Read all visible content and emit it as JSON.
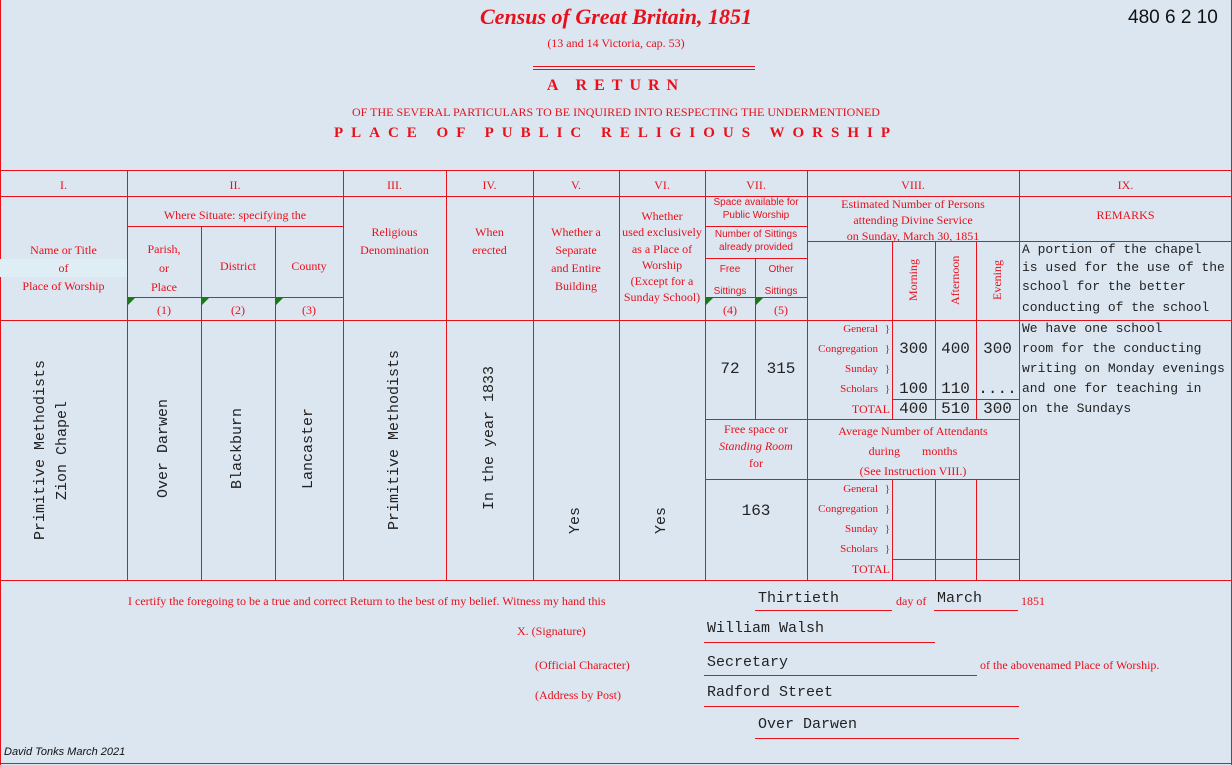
{
  "header": {
    "title": "Census of Great Britain, 1851",
    "reference": "480 6 2 10",
    "subtitle": "(13 and 14 Victoria, cap. 53)",
    "return_title": "A RETURN",
    "particulars": "OF THE SEVERAL PARTICULARS TO BE INQUIRED INTO RESPECTING THE UNDERMENTIONED",
    "place_title": "PLACE OF PUBLIC RELIGIOUS WORSHIP"
  },
  "columns": {
    "numerals": [
      "I.",
      "II.",
      "III.",
      "IV.",
      "V.",
      "VI.",
      "VII.",
      "VIII.",
      "IX."
    ],
    "name_title": [
      "Name or Title",
      "of",
      "Place of Worship"
    ],
    "where_situate": "Where Situate: specifying the",
    "parish": [
      "Parish,",
      "or",
      "Place"
    ],
    "district": "District",
    "county": "County",
    "sub_numbers": [
      "(1)",
      "(2)",
      "(3)",
      "(4)",
      "(5)"
    ],
    "denomination": [
      "Religious",
      "Denomination"
    ],
    "erected": [
      "When",
      "erected"
    ],
    "separate": [
      "Whether a",
      "Separate",
      "and Entire",
      "Building"
    ],
    "exclusive": [
      "Whether",
      "used exclusively",
      "as a Place of",
      "Worship",
      "(Except for a",
      "Sunday School)"
    ],
    "space": [
      "Space available for",
      "Public Worship"
    ],
    "sittings_provided": [
      "Number of Sittings",
      "already provided"
    ],
    "free_sittings": [
      "Free",
      "Sittings"
    ],
    "other_sittings": [
      "Other",
      "Sittings"
    ],
    "estimated": [
      "Estimated Number of Persons",
      "attending Divine Service",
      "on Sunday, March 30, 1851"
    ],
    "services": [
      "Morning",
      "Afternoon",
      "Evening"
    ],
    "remarks": "REMARKS",
    "row_labels": [
      "General",
      "Congregation",
      "Sunday",
      "Scholars",
      "TOTAL"
    ],
    "brace": "}",
    "standing": [
      "Free space or",
      "Standing Room",
      "for"
    ],
    "average": [
      "Average Number of Attendants",
      "during",
      "months",
      "(See Instruction VIII.)"
    ]
  },
  "entry": {
    "name": [
      "Primitive Methodists",
      "Zion Chapel"
    ],
    "parish": "Over Darwen",
    "district": "Blackburn",
    "county": "Lancaster",
    "denomination": "Primitive Methodists",
    "erected": "In the year 1833",
    "separate": "Yes",
    "exclusive": "Yes",
    "free_sittings": "72",
    "other_sittings": "315",
    "standing_room": "163",
    "general_congregation": [
      "300",
      "400",
      "300"
    ],
    "sunday_scholars": [
      "100",
      "110",
      "...."
    ],
    "total": [
      "400",
      "510",
      "300"
    ],
    "remarks": [
      "A portion of the chapel",
      "is used for the use of the",
      "school for the better",
      "conducting of the school",
      "We have one school",
      "room for the conducting",
      "writing on Monday evenings",
      "and one for teaching in",
      "on the Sundays"
    ]
  },
  "footer": {
    "certify": "I certify the foregoing to be a true and correct Return to the best of my belief.  Witness my hand this",
    "day": "Thirtieth",
    "day_of": "day of",
    "month": "March",
    "year": "1851",
    "signature_label": "X. (Signature)",
    "signature": "William Walsh",
    "official_label": "(Official Character)",
    "official": "Secretary",
    "official_suffix": "of the abovenamed Place of Worship.",
    "address_label": "(Address by Post)",
    "address1": "Radford Street",
    "address2": "Over Darwen",
    "credit": "David Tonks March 2021"
  },
  "colors": {
    "ink": "#e8101a",
    "background": "#dce6f1",
    "typed": "#222222",
    "marker": "#1a7a1a"
  }
}
